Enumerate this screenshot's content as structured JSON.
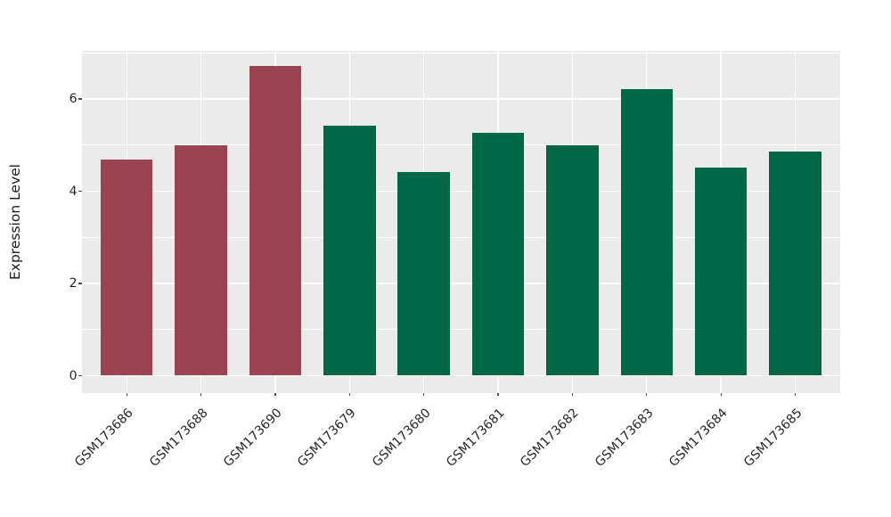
{
  "chart_data": {
    "type": "bar",
    "title": "",
    "xlabel": "",
    "ylabel": "Expression Level",
    "categories": [
      "GSM173686",
      "GSM173688",
      "GSM173690",
      "GSM173679",
      "GSM173680",
      "GSM173681",
      "GSM173682",
      "GSM173683",
      "GSM173684",
      "GSM173685"
    ],
    "values": [
      4.68,
      5.0,
      6.72,
      5.43,
      4.42,
      5.26,
      5.0,
      6.21,
      4.51,
      4.86
    ],
    "bar_colors": [
      "#9C4352",
      "#9C4352",
      "#9C4352",
      "#006747",
      "#006747",
      "#006747",
      "#006747",
      "#006747",
      "#006747",
      "#006747"
    ],
    "group_colors": {
      "group_a_maroon": "#9C4352",
      "group_b_green": "#006747"
    },
    "ylim": [
      -0.34,
      7.08
    ],
    "ytick_labeled_values": [
      0,
      2,
      4,
      6
    ],
    "ytick_labels": [
      "0",
      "2",
      "4",
      "6"
    ],
    "gridline_values": [
      0,
      1,
      2,
      3,
      4,
      5,
      6,
      7
    ],
    "grid": "on",
    "gridline_color": "#ffffff",
    "plot_background": "#EBEBEB",
    "figure_background": "#ffffff",
    "legend": "none",
    "x_tick_label_rotation_deg": 45
  }
}
